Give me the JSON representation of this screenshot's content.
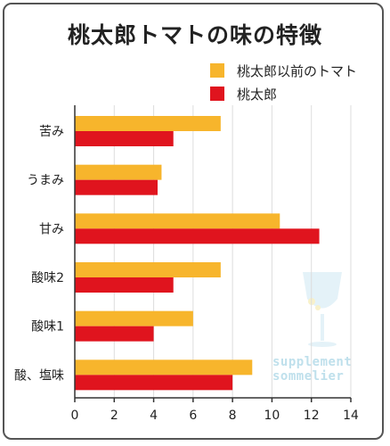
{
  "chart_data": {
    "type": "bar",
    "orientation": "horizontal",
    "title": "桃太郎トマトの味の特徴",
    "categories": [
      "苦み",
      "うまみ",
      "甘み",
      "酸味2",
      "酸味1",
      "酸、塩味"
    ],
    "series": [
      {
        "name": "桃太郎以前のトマト",
        "color": "#f7b52c",
        "values": [
          7.4,
          4.4,
          10.4,
          7.4,
          6.0,
          9.0
        ]
      },
      {
        "name": "桃太郎",
        "color": "#e0141e",
        "values": [
          5.0,
          4.2,
          12.4,
          5.0,
          4.0,
          8.0
        ]
      }
    ],
    "xlim": [
      0,
      14
    ],
    "xticks": [
      "0",
      "2",
      "4",
      "6",
      "8",
      "10",
      "12",
      "14"
    ],
    "grid": true,
    "legend_position": "top-right"
  },
  "watermark": {
    "line1": "supplement",
    "line2": "sommelier",
    "icon": "wine-glass-icon"
  }
}
